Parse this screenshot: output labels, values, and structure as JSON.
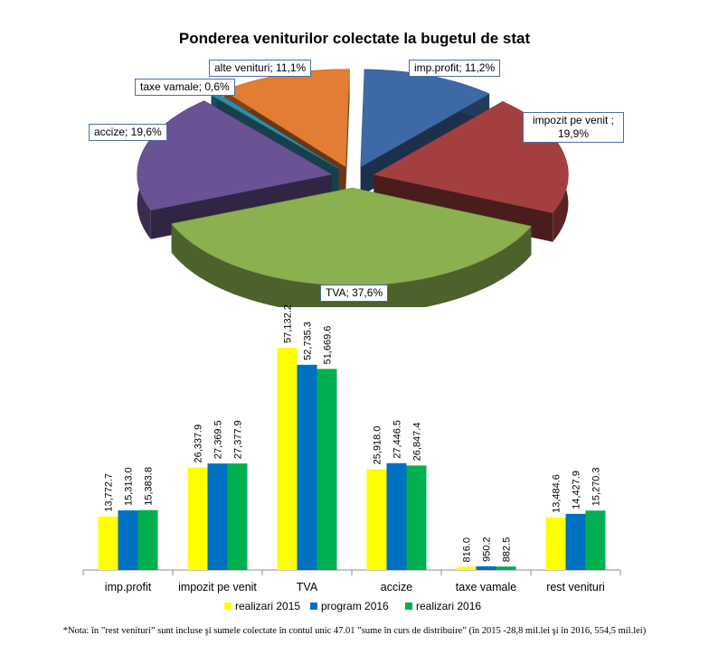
{
  "chart_data": [
    {
      "type": "pie",
      "title": "Ponderea veniturilor colectate la bugetul de stat",
      "slices": [
        {
          "label": "imp.profit; 11,2%",
          "value": 11.2,
          "color": "#3d6aa6"
        },
        {
          "label": "impozit pe venit ; 19,9%",
          "value": 19.9,
          "color": "#a3403f"
        },
        {
          "label": "TVA; 37,6%",
          "value": 37.6,
          "color": "#8ab04f"
        },
        {
          "label": "accize; 19,6%",
          "value": 19.6,
          "color": "#6a5294"
        },
        {
          "label": "taxe vamale; 0,6%",
          "value": 0.6,
          "color": "#2f8ea8"
        },
        {
          "label": "alte venituri; 11,1%",
          "value": 11.1,
          "color": "#e27d33"
        }
      ]
    },
    {
      "type": "bar",
      "categories": [
        "imp.profit",
        "impozit pe venit",
        "TVA",
        "accize",
        "taxe vamale",
        "rest venituri"
      ],
      "series": [
        {
          "name": "realizari 2015",
          "color": "#ffff00",
          "values": [
            13772.7,
            26337.9,
            57132.2,
            25918.0,
            816.0,
            13484.6
          ],
          "labels": [
            "13,772.7",
            "26,337.9",
            "57,132.2",
            "25,918.0",
            "816.0",
            "13,484.6"
          ]
        },
        {
          "name": "program 2016",
          "color": "#0070c0",
          "values": [
            15313.0,
            27369.5,
            52735.3,
            27446.5,
            950.2,
            14427.9
          ],
          "labels": [
            "15,313.0",
            "27,369.5",
            "52,735.3",
            "27,446.5",
            "950.2",
            "14,427.9"
          ]
        },
        {
          "name": "realizari 2016",
          "color": "#00b050",
          "values": [
            15383.8,
            27377.9,
            51669.6,
            26847.4,
            882.5,
            15270.3
          ],
          "labels": [
            "15,383.8",
            "27,377.9",
            "51,669.6",
            "26,847.4",
            "882.5",
            "15,270.3"
          ]
        }
      ],
      "legend_position": "bottom"
    }
  ],
  "footnote": "*Nota: în ”rest venituri” sunt incluse şi sumele colectate în contul unic 47.01 ”sume în curs de distribuire” (în 2015 -28,8 mil.lei şi în 2016, 554,5 mil.lei)"
}
